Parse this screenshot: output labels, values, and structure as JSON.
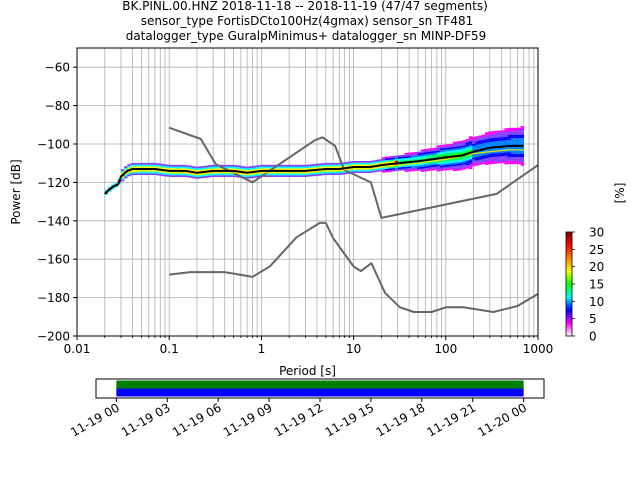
{
  "title_lines": [
    "BK.PINL.00.HNZ   2018-11-18 -- 2018-11-19  (47/47 segments)",
    "sensor_type FortisDCto100Hz(4gmax) sensor_sn TF481",
    "datalogger_type GuralpMinimus+ datalogger_sn MINP-DF59"
  ],
  "chart_data": [
    {
      "type": "heatmap",
      "title": "",
      "xlabel": "Period [s]",
      "ylabel": "Power [dB]",
      "xscale": "log",
      "xlim": [
        0.01,
        1000
      ],
      "ylim": [
        -200,
        -50
      ],
      "grid": true,
      "x_ticks": [
        "0.01",
        "0.1",
        "1",
        "10",
        "100",
        "1000"
      ],
      "y_ticks": [
        "−60",
        "−80",
        "−100",
        "−120",
        "−140",
        "−160",
        "−180",
        "−200"
      ],
      "colorbar": {
        "label": "[%]",
        "range": [
          0,
          30
        ],
        "ticks": [
          "0",
          "5",
          "10",
          "15",
          "20",
          "25",
          "30"
        ],
        "colors": [
          "#ffffff",
          "#ff00ff",
          "#0000ff",
          "#00ffff",
          "#00ff00",
          "#ffff00",
          "#ff8000",
          "#ff0000",
          "#800000"
        ]
      },
      "series": [
        {
          "name": "",
          "style": "black median",
          "x": [
            0.02,
            0.022,
            0.025,
            0.028,
            0.03,
            0.035,
            0.04,
            0.05,
            0.07,
            0.1,
            0.15,
            0.2,
            0.3,
            0.5,
            0.7,
            1,
            1.5,
            2,
            3,
            5,
            7,
            10,
            15,
            20,
            30,
            50,
            70,
            100,
            150,
            200,
            300,
            500,
            700
          ],
          "y": [
            -126,
            -124,
            -122,
            -121,
            -117,
            -114,
            -113,
            -113,
            -113,
            -114,
            -114,
            -115,
            -114,
            -114,
            -115,
            -114,
            -114,
            -114,
            -114,
            -113,
            -113,
            -112,
            -112,
            -111,
            -110,
            -109,
            -108,
            -107,
            -106,
            -104,
            -102,
            -101,
            -101
          ]
        },
        {
          "name": "",
          "style": "yellow mode",
          "x": [
            0.03,
            0.05,
            0.1,
            0.2,
            0.3,
            0.5,
            1,
            2,
            5,
            10,
            20,
            50,
            100,
            200,
            300,
            500,
            700
          ],
          "y": [
            -115,
            -114,
            -114,
            -116,
            -115,
            -115,
            -115,
            -115,
            -114,
            -113,
            -112,
            -110,
            -108,
            -105,
            -104,
            -103,
            -103
          ]
        },
        {
          "name": "",
          "style": "grey noise model high",
          "x": [
            0.1,
            0.22,
            0.32,
            0.8,
            3.8,
            4.6,
            6.3,
            7.9,
            15.4,
            20,
            354.8,
            1000
          ],
          "y": [
            -91.5,
            -97.4,
            -110.5,
            -120,
            -98,
            -96.5,
            -101,
            -113.5,
            -120,
            -138.5,
            -126,
            -111
          ]
        },
        {
          "name": "",
          "style": "grey noise model low",
          "x": [
            0.1,
            0.17,
            0.4,
            0.8,
            1.24,
            2.4,
            4.3,
            5,
            6,
            10,
            12,
            15.6,
            21.9,
            31.6,
            45,
            70,
            101,
            154,
            328,
            600,
            1000
          ],
          "y": [
            -168,
            -166.7,
            -166.7,
            -169.2,
            -163.7,
            -148.6,
            -141.1,
            -141.1,
            -149,
            -163.8,
            -166.2,
            -162.1,
            -177.5,
            -185,
            -187.5,
            -187.5,
            -185,
            -185,
            -187.5,
            -184.4,
            -178
          ]
        }
      ]
    },
    {
      "type": "timeline",
      "title": "",
      "x_ticks": [
        "11-19 00",
        "11-19 03",
        "11-19 06",
        "11-19 09",
        "11-19 12",
        "11-19 15",
        "11-19 18",
        "11-19 21",
        "11-20 00"
      ],
      "xlim_hours": [
        -1.2,
        25.2
      ],
      "bands": [
        {
          "name": "",
          "color": "#008000",
          "start": 0,
          "end": 24
        },
        {
          "name": "",
          "color": "#0000ff",
          "start": 0,
          "end": 24
        }
      ]
    }
  ]
}
